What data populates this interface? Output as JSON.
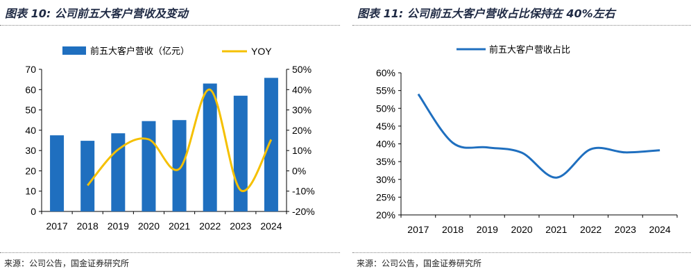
{
  "source_label": "来源：公司公告，国金证券研究所",
  "colors": {
    "bar": "#1f6fbf",
    "yoy_line": "#f5c000",
    "share_line": "#1f6fbf",
    "title": "#1f2a44"
  },
  "chart_data": [
    {
      "type": "bar",
      "title": "图表 10: 公司前五大客户营收及变动",
      "categories": [
        "2017",
        "2018",
        "2019",
        "2020",
        "2021",
        "2022",
        "2023",
        "2024"
      ],
      "series": [
        {
          "name": "前五大客户营收（亿元）",
          "type": "bar",
          "axis": "left",
          "values": [
            37.5,
            34.8,
            38.5,
            44.5,
            45.0,
            63.0,
            57.0,
            65.8
          ]
        },
        {
          "name": "YOY",
          "type": "line",
          "axis": "right",
          "smooth": true,
          "values": [
            null,
            -7.2,
            10.5,
            15.5,
            1.0,
            40.0,
            -9.5,
            15.4
          ]
        }
      ],
      "ylim_left": [
        0,
        70
      ],
      "ylim_right": [
        -20,
        50
      ],
      "yticks_left": [
        "0",
        "10",
        "20",
        "30",
        "40",
        "50",
        "60",
        "70"
      ],
      "yticks_right": [
        "-20%",
        "-10%",
        "0%",
        "10%",
        "20%",
        "30%",
        "40%",
        "50%"
      ],
      "legend": "top-center",
      "grid": false
    },
    {
      "type": "line",
      "title": "图表 11: 公司前五大客户营收占比保持在 40%左右",
      "categories": [
        "2017",
        "2018",
        "2019",
        "2020",
        "2021",
        "2022",
        "2023",
        "2024"
      ],
      "series": [
        {
          "name": "前五大客户营收占比",
          "smooth": true,
          "values": [
            54.0,
            40.3,
            39.0,
            37.5,
            30.5,
            38.5,
            37.6,
            38.2
          ]
        }
      ],
      "ylim": [
        20,
        60
      ],
      "yticks": [
        "20%",
        "25%",
        "30%",
        "35%",
        "40%",
        "45%",
        "50%",
        "55%",
        "60%"
      ],
      "legend": "top-left",
      "grid": false
    }
  ]
}
